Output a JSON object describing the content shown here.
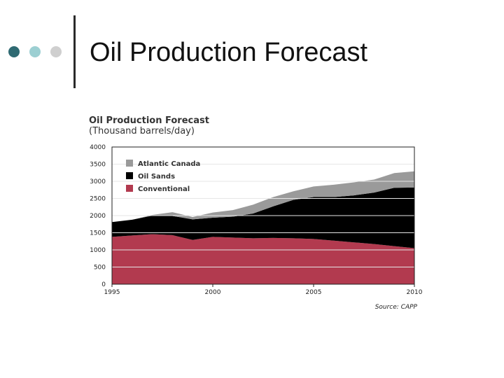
{
  "slide": {
    "title": "Oil Production Forecast"
  },
  "colors": {
    "atlantic": "#9a9a9a",
    "oilsands": "#000000",
    "conventional": "#b23a4f",
    "dot_dark": "#2f6a72",
    "dot_light": "#9ccfd2",
    "dot_gray": "#cfcfcf"
  },
  "chart_data": {
    "type": "area",
    "stacked": true,
    "title": "Oil Production Forecast",
    "subtitle": "(Thousand barrels/day)",
    "source": "Source: CAPP",
    "legend_position": "top-left",
    "grid": true,
    "xlim": [
      1995,
      2010
    ],
    "ylim": [
      0,
      4000
    ],
    "xticks": [
      1995,
      2000,
      2005,
      2010
    ],
    "yticks": [
      0,
      500,
      1000,
      1500,
      2000,
      2500,
      3000,
      3500,
      4000
    ],
    "x": [
      1995,
      1996,
      1997,
      1998,
      1999,
      2000,
      2001,
      2002,
      2003,
      2004,
      2005,
      2006,
      2007,
      2008,
      2009,
      2010
    ],
    "series": [
      {
        "name": "Conventional",
        "color": "#b23a4f",
        "values": [
          1380,
          1420,
          1460,
          1430,
          1290,
          1380,
          1360,
          1340,
          1350,
          1340,
          1320,
          1270,
          1220,
          1170,
          1110,
          1050
        ]
      },
      {
        "name": "Oil Sands",
        "color": "#000000",
        "values": [
          430,
          460,
          540,
          560,
          600,
          560,
          610,
          720,
          920,
          1120,
          1220,
          1270,
          1370,
          1500,
          1700,
          1770
        ]
      },
      {
        "name": "Atlantic Canada",
        "color": "#9a9a9a",
        "values": [
          0,
          0,
          20,
          110,
          70,
          150,
          190,
          260,
          270,
          250,
          310,
          360,
          380,
          380,
          430,
          470
        ]
      }
    ]
  }
}
